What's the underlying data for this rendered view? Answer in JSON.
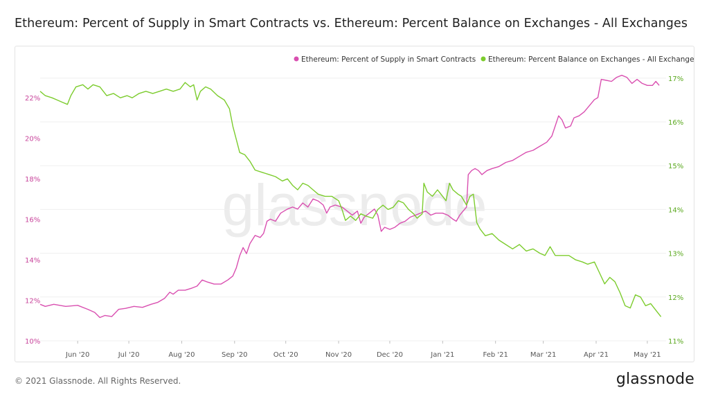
{
  "title": "Ethereum: Percent of Supply in Smart Contracts vs. Ethereum: Percent Balance on Exchanges - All Exchanges",
  "footer": {
    "copyright": "© 2021 Glassnode. All Rights Reserved.",
    "logo": "glassnode",
    "watermark": "glassnode"
  },
  "colors": {
    "smart_contracts": "#d94fb0",
    "exchanges": "#7ccc2d",
    "left_axis_text": "#c8449b",
    "right_axis_text": "#5aa81e",
    "grid": "#efefef"
  },
  "chart_data": {
    "type": "line",
    "x_axis": {
      "type": "date",
      "range": [
        "2020-05-10",
        "2021-05-12"
      ],
      "ticks": [
        {
          "date": "2020-06-01",
          "label": "Jun '20"
        },
        {
          "date": "2020-07-01",
          "label": "Jul '20"
        },
        {
          "date": "2020-08-01",
          "label": "Aug '20"
        },
        {
          "date": "2020-09-01",
          "label": "Sep '20"
        },
        {
          "date": "2020-10-01",
          "label": "Oct '20"
        },
        {
          "date": "2020-11-01",
          "label": "Nov '20"
        },
        {
          "date": "2020-12-01",
          "label": "Dec '20"
        },
        {
          "date": "2021-01-01",
          "label": "Jan '21"
        },
        {
          "date": "2021-02-01",
          "label": "Feb '21"
        },
        {
          "date": "2021-03-01",
          "label": "Mar '21"
        },
        {
          "date": "2021-04-01",
          "label": "Apr '21"
        },
        {
          "date": "2021-05-01",
          "label": "May '21"
        }
      ]
    },
    "y_left": {
      "range": [
        10,
        23.5
      ],
      "ticks": [
        {
          "value": 10,
          "label": "10%"
        },
        {
          "value": 12,
          "label": "12%"
        },
        {
          "value": 14,
          "label": "14%"
        },
        {
          "value": 16,
          "label": "16%"
        },
        {
          "value": 18,
          "label": "18%"
        },
        {
          "value": 20,
          "label": "20%"
        },
        {
          "value": 22,
          "label": "22%"
        }
      ]
    },
    "y_right": {
      "range": [
        11,
        17.25
      ],
      "ticks": [
        {
          "value": 11,
          "label": "11%"
        },
        {
          "value": 12,
          "label": "12%"
        },
        {
          "value": 13,
          "label": "13%"
        },
        {
          "value": 14,
          "label": "14%"
        },
        {
          "value": 15,
          "label": "15%"
        },
        {
          "value": 16,
          "label": "16%"
        },
        {
          "value": 17,
          "label": "17%"
        }
      ]
    },
    "grid": true,
    "legend_position": "top-right",
    "series": [
      {
        "name": "Ethereum: Percent of Supply in Smart Contracts",
        "axis": "left",
        "points": [
          [
            "2020-05-10",
            11.8
          ],
          [
            "2020-05-13",
            11.7
          ],
          [
            "2020-05-18",
            11.8
          ],
          [
            "2020-05-25",
            11.7
          ],
          [
            "2020-06-01",
            11.75
          ],
          [
            "2020-06-07",
            11.55
          ],
          [
            "2020-06-11",
            11.4
          ],
          [
            "2020-06-14",
            11.15
          ],
          [
            "2020-06-17",
            11.25
          ],
          [
            "2020-06-21",
            11.2
          ],
          [
            "2020-06-25",
            11.55
          ],
          [
            "2020-06-29",
            11.6
          ],
          [
            "2020-07-04",
            11.7
          ],
          [
            "2020-07-09",
            11.65
          ],
          [
            "2020-07-14",
            11.8
          ],
          [
            "2020-07-18",
            11.9
          ],
          [
            "2020-07-22",
            12.1
          ],
          [
            "2020-07-25",
            12.4
          ],
          [
            "2020-07-27",
            12.3
          ],
          [
            "2020-07-30",
            12.5
          ],
          [
            "2020-08-03",
            12.5
          ],
          [
            "2020-08-07",
            12.6
          ],
          [
            "2020-08-10",
            12.7
          ],
          [
            "2020-08-13",
            13.0
          ],
          [
            "2020-08-16",
            12.9
          ],
          [
            "2020-08-20",
            12.8
          ],
          [
            "2020-08-24",
            12.8
          ],
          [
            "2020-08-28",
            13.0
          ],
          [
            "2020-08-31",
            13.2
          ],
          [
            "2020-09-02",
            13.6
          ],
          [
            "2020-09-04",
            14.2
          ],
          [
            "2020-09-06",
            14.6
          ],
          [
            "2020-09-08",
            14.3
          ],
          [
            "2020-09-10",
            14.8
          ],
          [
            "2020-09-13",
            15.2
          ],
          [
            "2020-09-16",
            15.1
          ],
          [
            "2020-09-18",
            15.3
          ],
          [
            "2020-09-20",
            15.9
          ],
          [
            "2020-09-22",
            16.0
          ],
          [
            "2020-09-25",
            15.9
          ],
          [
            "2020-09-28",
            16.3
          ],
          [
            "2020-10-02",
            16.5
          ],
          [
            "2020-10-05",
            16.6
          ],
          [
            "2020-10-08",
            16.5
          ],
          [
            "2020-10-11",
            16.8
          ],
          [
            "2020-10-14",
            16.6
          ],
          [
            "2020-10-17",
            17.0
          ],
          [
            "2020-10-20",
            16.9
          ],
          [
            "2020-10-23",
            16.7
          ],
          [
            "2020-10-25",
            16.3
          ],
          [
            "2020-10-27",
            16.6
          ],
          [
            "2020-10-30",
            16.7
          ],
          [
            "2020-11-03",
            16.6
          ],
          [
            "2020-11-06",
            16.4
          ],
          [
            "2020-11-09",
            16.2
          ],
          [
            "2020-11-12",
            16.4
          ],
          [
            "2020-11-14",
            15.8
          ],
          [
            "2020-11-16",
            16.1
          ],
          [
            "2020-11-19",
            16.3
          ],
          [
            "2020-11-22",
            16.5
          ],
          [
            "2020-11-24",
            16.2
          ],
          [
            "2020-11-26",
            15.4
          ],
          [
            "2020-11-28",
            15.6
          ],
          [
            "2020-12-01",
            15.5
          ],
          [
            "2020-12-04",
            15.6
          ],
          [
            "2020-12-07",
            15.8
          ],
          [
            "2020-12-10",
            15.9
          ],
          [
            "2020-12-13",
            16.1
          ],
          [
            "2020-12-16",
            16.2
          ],
          [
            "2020-12-19",
            16.3
          ],
          [
            "2020-12-22",
            16.4
          ],
          [
            "2020-12-25",
            16.2
          ],
          [
            "2020-12-28",
            16.3
          ],
          [
            "2021-01-01",
            16.3
          ],
          [
            "2021-01-04",
            16.2
          ],
          [
            "2021-01-07",
            16.0
          ],
          [
            "2021-01-09",
            15.9
          ],
          [
            "2021-01-11",
            16.2
          ],
          [
            "2021-01-13",
            16.4
          ],
          [
            "2021-01-15",
            16.6
          ],
          [
            "2021-01-16",
            18.2
          ],
          [
            "2021-01-18",
            18.4
          ],
          [
            "2021-01-20",
            18.5
          ],
          [
            "2021-01-22",
            18.4
          ],
          [
            "2021-01-24",
            18.2
          ],
          [
            "2021-01-27",
            18.4
          ],
          [
            "2021-01-30",
            18.5
          ],
          [
            "2021-02-03",
            18.6
          ],
          [
            "2021-02-07",
            18.8
          ],
          [
            "2021-02-11",
            18.9
          ],
          [
            "2021-02-15",
            19.1
          ],
          [
            "2021-02-19",
            19.3
          ],
          [
            "2021-02-23",
            19.4
          ],
          [
            "2021-02-27",
            19.6
          ],
          [
            "2021-03-03",
            19.8
          ],
          [
            "2021-03-06",
            20.1
          ],
          [
            "2021-03-08",
            20.6
          ],
          [
            "2021-03-10",
            21.1
          ],
          [
            "2021-03-12",
            20.9
          ],
          [
            "2021-03-14",
            20.5
          ],
          [
            "2021-03-17",
            20.6
          ],
          [
            "2021-03-19",
            21.0
          ],
          [
            "2021-03-22",
            21.1
          ],
          [
            "2021-03-25",
            21.3
          ],
          [
            "2021-03-28",
            21.6
          ],
          [
            "2021-03-31",
            21.9
          ],
          [
            "2021-04-02",
            22.0
          ],
          [
            "2021-04-04",
            22.9
          ],
          [
            "2021-04-07",
            22.85
          ],
          [
            "2021-04-10",
            22.8
          ],
          [
            "2021-04-13",
            23.0
          ],
          [
            "2021-04-16",
            23.1
          ],
          [
            "2021-04-19",
            23.0
          ],
          [
            "2021-04-22",
            22.7
          ],
          [
            "2021-04-25",
            22.9
          ],
          [
            "2021-04-28",
            22.7
          ],
          [
            "2021-05-01",
            22.6
          ],
          [
            "2021-05-04",
            22.6
          ],
          [
            "2021-05-06",
            22.8
          ],
          [
            "2021-05-08",
            22.6
          ]
        ]
      },
      {
        "name": "Ethereum: Percent Balance on Exchanges - All Exchanges",
        "axis": "right",
        "points": [
          [
            "2020-05-10",
            16.7
          ],
          [
            "2020-05-13",
            16.6
          ],
          [
            "2020-05-17",
            16.55
          ],
          [
            "2020-05-20",
            16.5
          ],
          [
            "2020-05-23",
            16.45
          ],
          [
            "2020-05-26",
            16.4
          ],
          [
            "2020-05-28",
            16.6
          ],
          [
            "2020-05-31",
            16.8
          ],
          [
            "2020-06-04",
            16.85
          ],
          [
            "2020-06-07",
            16.75
          ],
          [
            "2020-06-10",
            16.85
          ],
          [
            "2020-06-14",
            16.8
          ],
          [
            "2020-06-18",
            16.6
          ],
          [
            "2020-06-22",
            16.65
          ],
          [
            "2020-06-26",
            16.55
          ],
          [
            "2020-06-30",
            16.6
          ],
          [
            "2020-07-03",
            16.55
          ],
          [
            "2020-07-07",
            16.65
          ],
          [
            "2020-07-11",
            16.7
          ],
          [
            "2020-07-15",
            16.65
          ],
          [
            "2020-07-19",
            16.7
          ],
          [
            "2020-07-23",
            16.75
          ],
          [
            "2020-07-27",
            16.7
          ],
          [
            "2020-07-31",
            16.75
          ],
          [
            "2020-08-03",
            16.9
          ],
          [
            "2020-08-06",
            16.8
          ],
          [
            "2020-08-08",
            16.85
          ],
          [
            "2020-08-10",
            16.5
          ],
          [
            "2020-08-12",
            16.7
          ],
          [
            "2020-08-15",
            16.8
          ],
          [
            "2020-08-18",
            16.75
          ],
          [
            "2020-08-22",
            16.6
          ],
          [
            "2020-08-26",
            16.5
          ],
          [
            "2020-08-29",
            16.3
          ],
          [
            "2020-08-31",
            15.9
          ],
          [
            "2020-09-02",
            15.6
          ],
          [
            "2020-09-04",
            15.3
          ],
          [
            "2020-09-07",
            15.25
          ],
          [
            "2020-09-10",
            15.1
          ],
          [
            "2020-09-13",
            14.9
          ],
          [
            "2020-09-17",
            14.85
          ],
          [
            "2020-09-21",
            14.8
          ],
          [
            "2020-09-25",
            14.75
          ],
          [
            "2020-09-29",
            14.65
          ],
          [
            "2020-10-02",
            14.7
          ],
          [
            "2020-10-05",
            14.55
          ],
          [
            "2020-10-08",
            14.45
          ],
          [
            "2020-10-11",
            14.6
          ],
          [
            "2020-10-14",
            14.55
          ],
          [
            "2020-10-17",
            14.45
          ],
          [
            "2020-10-20",
            14.35
          ],
          [
            "2020-10-24",
            14.3
          ],
          [
            "2020-10-28",
            14.3
          ],
          [
            "2020-11-01",
            14.2
          ],
          [
            "2020-11-03",
            14.0
          ],
          [
            "2020-11-05",
            13.75
          ],
          [
            "2020-11-08",
            13.85
          ],
          [
            "2020-11-11",
            13.75
          ],
          [
            "2020-11-14",
            13.9
          ],
          [
            "2020-11-17",
            13.85
          ],
          [
            "2020-11-21",
            13.8
          ],
          [
            "2020-11-24",
            14.0
          ],
          [
            "2020-11-27",
            14.1
          ],
          [
            "2020-11-30",
            14.0
          ],
          [
            "2020-12-03",
            14.05
          ],
          [
            "2020-12-06",
            14.2
          ],
          [
            "2020-12-09",
            14.15
          ],
          [
            "2020-12-12",
            14.0
          ],
          [
            "2020-12-15",
            13.9
          ],
          [
            "2020-12-17",
            13.8
          ],
          [
            "2020-12-20",
            13.9
          ],
          [
            "2020-12-21",
            14.6
          ],
          [
            "2020-12-23",
            14.4
          ],
          [
            "2020-12-26",
            14.3
          ],
          [
            "2020-12-29",
            14.45
          ],
          [
            "2021-01-01",
            14.3
          ],
          [
            "2021-01-03",
            14.2
          ],
          [
            "2021-01-05",
            14.6
          ],
          [
            "2021-01-07",
            14.45
          ],
          [
            "2021-01-10",
            14.35
          ],
          [
            "2021-01-12",
            14.3
          ],
          [
            "2021-01-15",
            14.1
          ],
          [
            "2021-01-17",
            14.3
          ],
          [
            "2021-01-19",
            14.35
          ],
          [
            "2021-01-21",
            13.7
          ],
          [
            "2021-01-23",
            13.55
          ],
          [
            "2021-01-26",
            13.4
          ],
          [
            "2021-01-30",
            13.45
          ],
          [
            "2021-02-03",
            13.3
          ],
          [
            "2021-02-07",
            13.2
          ],
          [
            "2021-02-11",
            13.1
          ],
          [
            "2021-02-15",
            13.2
          ],
          [
            "2021-02-19",
            13.05
          ],
          [
            "2021-02-23",
            13.1
          ],
          [
            "2021-02-27",
            13.0
          ],
          [
            "2021-03-02",
            12.95
          ],
          [
            "2021-03-05",
            13.15
          ],
          [
            "2021-03-08",
            12.95
          ],
          [
            "2021-03-12",
            12.95
          ],
          [
            "2021-03-16",
            12.95
          ],
          [
            "2021-03-20",
            12.85
          ],
          [
            "2021-03-24",
            12.8
          ],
          [
            "2021-03-27",
            12.75
          ],
          [
            "2021-03-31",
            12.8
          ],
          [
            "2021-04-03",
            12.55
          ],
          [
            "2021-04-06",
            12.3
          ],
          [
            "2021-04-09",
            12.45
          ],
          [
            "2021-04-12",
            12.35
          ],
          [
            "2021-04-15",
            12.1
          ],
          [
            "2021-04-18",
            11.8
          ],
          [
            "2021-04-21",
            11.75
          ],
          [
            "2021-04-24",
            12.05
          ],
          [
            "2021-04-27",
            12.0
          ],
          [
            "2021-04-30",
            11.8
          ],
          [
            "2021-05-03",
            11.85
          ],
          [
            "2021-05-06",
            11.7
          ],
          [
            "2021-05-09",
            11.55
          ]
        ]
      }
    ]
  }
}
